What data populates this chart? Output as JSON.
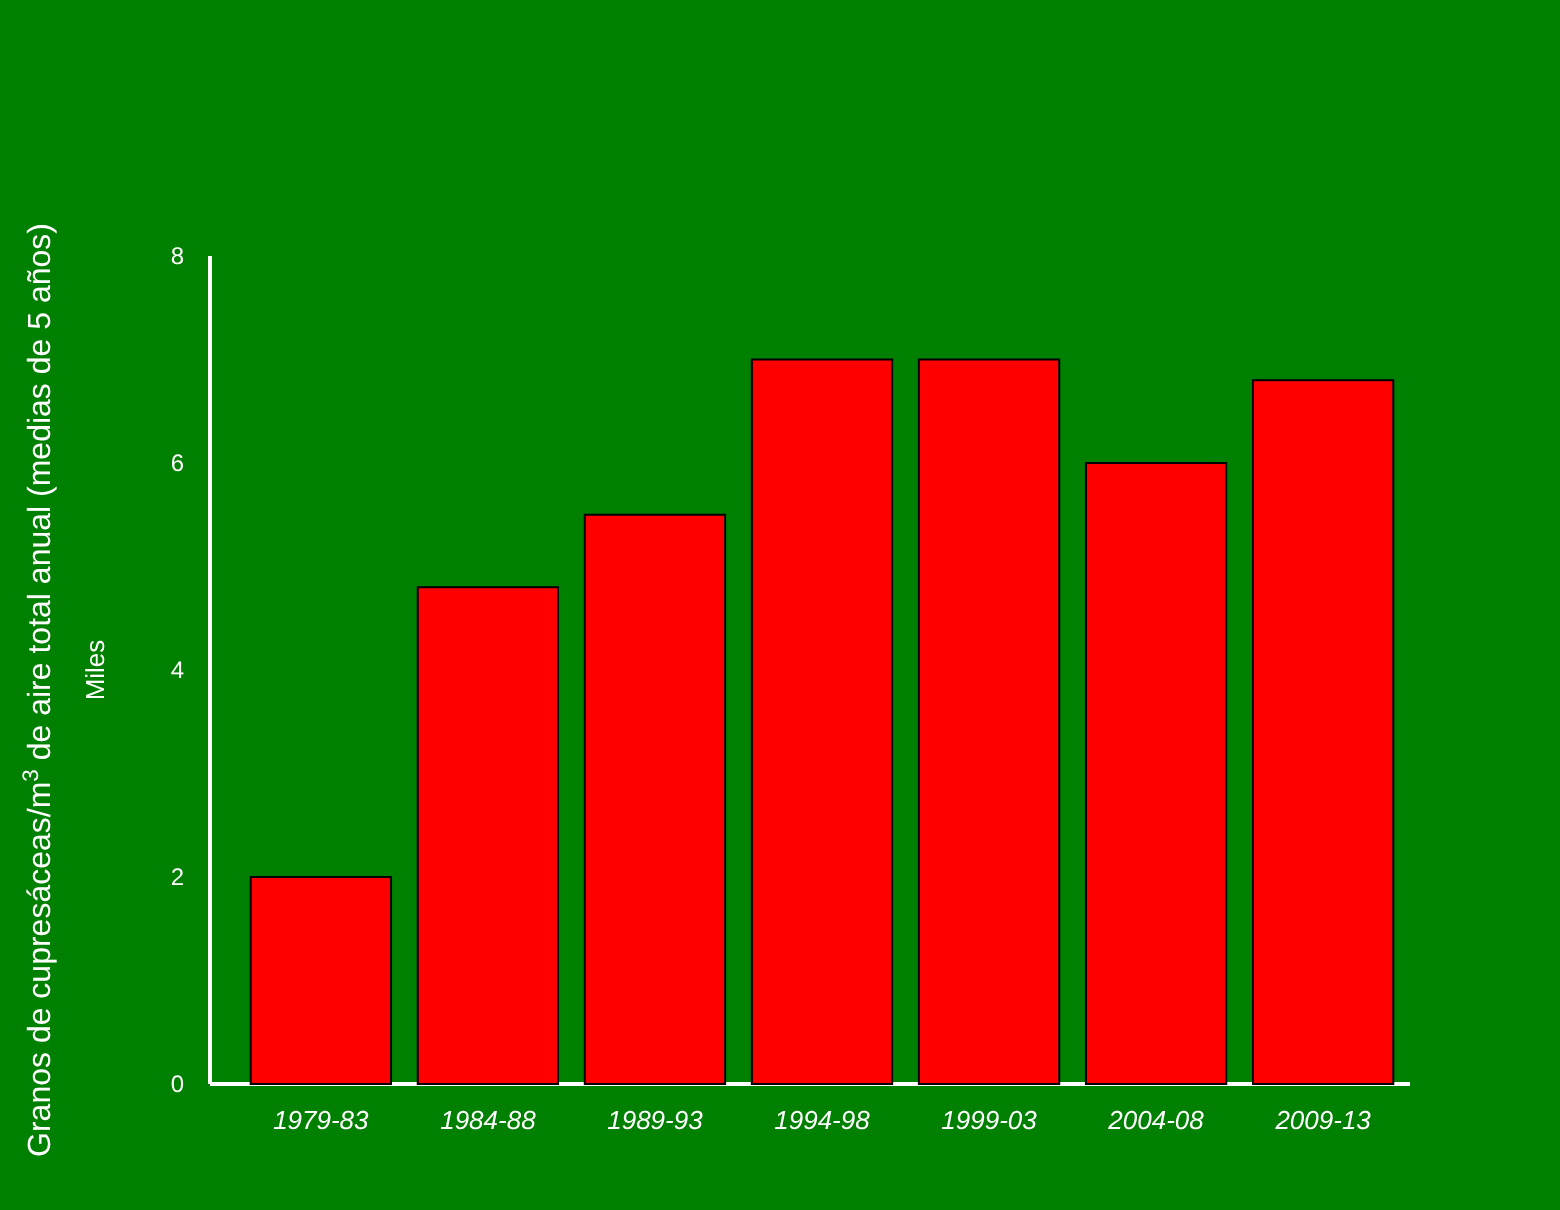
{
  "chart_data": {
    "type": "bar",
    "ylabel": "Granos de cupresáceas/m$^{3}$ de aire total anual (medias de 5 años)",
    "annotations": [
      "Miles"
    ],
    "categories": [
      "1979-83",
      "1984-88",
      "1989-93",
      "1994-98",
      "1999-03",
      "2004-08",
      "2009-13"
    ],
    "values": [
      2.0,
      4.8,
      5.5,
      7.0,
      7.0,
      6.0,
      6.8
    ],
    "color": "#ff0000",
    "ylim": [
      0,
      8
    ],
    "yticks": [
      0,
      2,
      4,
      6,
      8
    ],
    "grid": false
  }
}
